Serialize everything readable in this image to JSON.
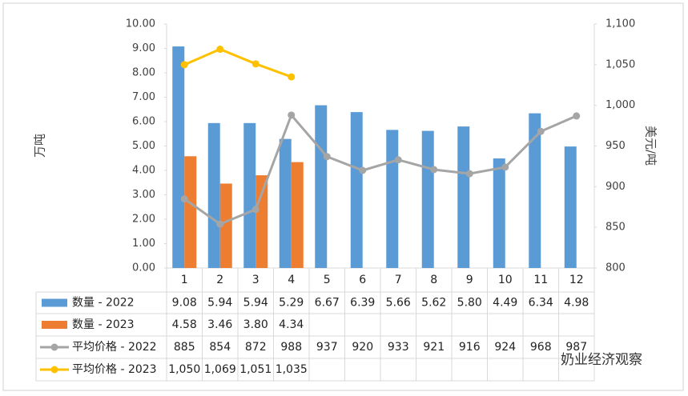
{
  "chart_data": {
    "type": "combo",
    "y_label": "万吨",
    "y2_label": "美元/吨",
    "categories": [
      "1",
      "2",
      "3",
      "4",
      "5",
      "6",
      "7",
      "8",
      "9",
      "10",
      "11",
      "12"
    ],
    "series": [
      {
        "name": "数量 - 2022",
        "type": "bar",
        "color": "#5b9bd5",
        "values": [
          9.08,
          5.94,
          5.94,
          5.29,
          6.67,
          6.39,
          5.66,
          5.62,
          5.8,
          4.49,
          6.34,
          4.98
        ],
        "value_labels": [
          "9.08",
          "5.94",
          "5.94",
          "5.29",
          "6.67",
          "6.39",
          "5.66",
          "5.62",
          "5.80",
          "4.49",
          "6.34",
          "4.98"
        ]
      },
      {
        "name": "数量 - 2023",
        "type": "bar",
        "color": "#ed7d31",
        "values": [
          4.58,
          3.46,
          3.8,
          4.34,
          null,
          null,
          null,
          null,
          null,
          null,
          null,
          null
        ],
        "value_labels": [
          "4.58",
          "3.46",
          "3.80",
          "4.34",
          null,
          null,
          null,
          null,
          null,
          null,
          null,
          null
        ]
      },
      {
        "name": "平均价格 - 2022",
        "type": "line",
        "axis": "y2",
        "color": "#a5a5a5",
        "values": [
          885,
          854,
          872,
          988,
          937,
          920,
          933,
          921,
          916,
          924,
          968,
          987
        ]
      },
      {
        "name": "平均价格 - 2023",
        "type": "line",
        "axis": "y2",
        "color": "#ffc000",
        "values": [
          1050,
          1069,
          1051,
          1035,
          null,
          null,
          null,
          null,
          null,
          null,
          null,
          null
        ],
        "value_labels": [
          "1,050",
          "1,069",
          "1,051",
          "1,035",
          null,
          null,
          null,
          null,
          null,
          null,
          null,
          null
        ]
      }
    ],
    "ylim": [
      0,
      10
    ],
    "yticks": [
      {
        "value": 0,
        "label": "0.00"
      },
      {
        "value": 1,
        "label": "1.00"
      },
      {
        "value": 2,
        "label": "2.00"
      },
      {
        "value": 3,
        "label": "3.00"
      },
      {
        "value": 4,
        "label": "4.00"
      },
      {
        "value": 5,
        "label": "5.00"
      },
      {
        "value": 6,
        "label": "6.00"
      },
      {
        "value": 7,
        "label": "7.00"
      },
      {
        "value": 8,
        "label": "8.00"
      },
      {
        "value": 9,
        "label": "9.00"
      },
      {
        "value": 10,
        "label": "10.00"
      }
    ],
    "y2lim": [
      800,
      1100
    ],
    "y2ticks": [
      800,
      850,
      900,
      950,
      {
        "value": 1000,
        "label": "1,000"
      },
      {
        "value": 1050,
        "label": "1,050"
      },
      {
        "value": 1100,
        "label": "1,100"
      }
    ],
    "grid": false,
    "watermark": "奶业经济观察"
  }
}
